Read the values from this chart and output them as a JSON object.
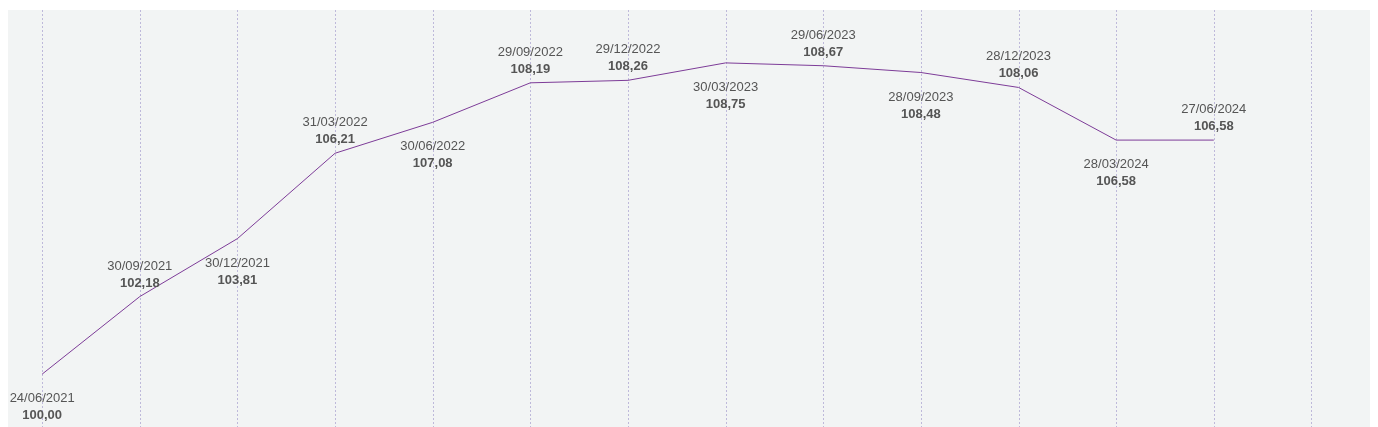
{
  "chart_data": {
    "type": "line",
    "categories": [
      "24/06/2021",
      "30/09/2021",
      "30/12/2021",
      "31/03/2022",
      "30/06/2022",
      "29/09/2022",
      "29/12/2022",
      "30/03/2023",
      "29/06/2023",
      "28/09/2023",
      "28/12/2023",
      "28/03/2024",
      "27/06/2024"
    ],
    "values": [
      100.0,
      102.18,
      103.81,
      106.21,
      107.08,
      108.19,
      108.26,
      108.75,
      108.67,
      108.48,
      108.06,
      106.58,
      106.58
    ],
    "value_labels": [
      "100,00",
      "102,18",
      "103,81",
      "106,21",
      "107,08",
      "108,19",
      "108,26",
      "108,75",
      "108,67",
      "108,48",
      "108,06",
      "106,58",
      "106,58"
    ],
    "color": "#7d3c98",
    "grid": "x"
  }
}
